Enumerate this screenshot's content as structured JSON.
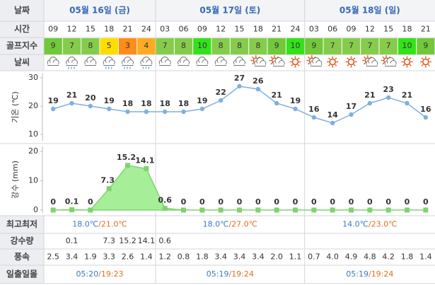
{
  "header": {
    "label": "날짜",
    "days": [
      "05월 16일 (금)",
      "05월 17일 (토)",
      "05월 18일 (일)"
    ]
  },
  "time": {
    "label": "시간",
    "values": [
      "09",
      "12",
      "15",
      "18",
      "21",
      "24",
      "03",
      "06",
      "09",
      "12",
      "15",
      "18",
      "21",
      "24",
      "03",
      "06",
      "09",
      "12",
      "15",
      "18",
      "21"
    ]
  },
  "golf": {
    "label": "골프지수",
    "values": [
      9,
      7,
      8,
      5,
      3,
      4,
      7,
      8,
      10,
      8,
      8,
      8,
      9,
      10,
      9,
      7,
      7,
      7,
      7,
      10,
      9
    ],
    "colors": [
      "#72c83a",
      "#86cc4c",
      "#86cc4c",
      "#ffdd00",
      "#ff8c1a",
      "#ffaa22",
      "#86cc4c",
      "#86cc4c",
      "#33e21a",
      "#86cc4c",
      "#86cc4c",
      "#86cc4c",
      "#72c83a",
      "#33e21a",
      "#72c83a",
      "#86cc4c",
      "#86cc4c",
      "#86cc4c",
      "#86cc4c",
      "#33e21a",
      "#72c83a"
    ]
  },
  "weather": {
    "label": "날씨"
  },
  "chart_data": [
    {
      "type": "line",
      "y_label": "기온 (℃)",
      "values": [
        19,
        21,
        20,
        19,
        18,
        18,
        18,
        18,
        19,
        22,
        27,
        26,
        21,
        19,
        16,
        14,
        17,
        21,
        23,
        21,
        16
      ],
      "color": "#7eb0e0",
      "ylim": [
        10,
        30
      ],
      "yticks": [
        10,
        20,
        30
      ]
    },
    {
      "type": "area",
      "y_label": "강수 (mm)",
      "values": [
        0,
        0.1,
        0,
        7.3,
        15.2,
        14.1,
        0.6,
        0,
        0,
        0,
        0,
        0,
        0,
        0,
        0,
        0,
        0,
        0,
        0,
        0,
        0
      ],
      "color": "#7fd36e",
      "fill": "#a6ef98",
      "ylim": [
        0,
        20
      ],
      "yticks": [
        0,
        10,
        20
      ]
    }
  ],
  "minmax": {
    "label": "최고최저",
    "sep": "/",
    "days": [
      {
        "low": "18.0℃",
        "high": "21.0℃"
      },
      {
        "low": "18.0℃",
        "high": "27.0℃"
      },
      {
        "low": "14.0℃",
        "high": "23.0℃"
      }
    ]
  },
  "rain": {
    "label": "강수량"
  },
  "wind": {
    "label": "풍속",
    "values": [
      "2.5",
      "3.4",
      "1.9",
      "3.3",
      "2.6",
      "1.4",
      "1.2",
      "0.8",
      "1.8",
      "3.4",
      "3.4",
      "3.4",
      "2.0",
      "1.1",
      "0.7",
      "4.0",
      "4.9",
      "4.8",
      "4.2",
      "1.8",
      "1.4"
    ]
  },
  "sun": {
    "label": "일출일몰",
    "sep": "/",
    "days": [
      {
        "rise": "05:20",
        "set": "19:23"
      },
      {
        "rise": "05:19",
        "set": "19:24"
      },
      {
        "rise": "05:19",
        "set": "19:24"
      }
    ]
  }
}
